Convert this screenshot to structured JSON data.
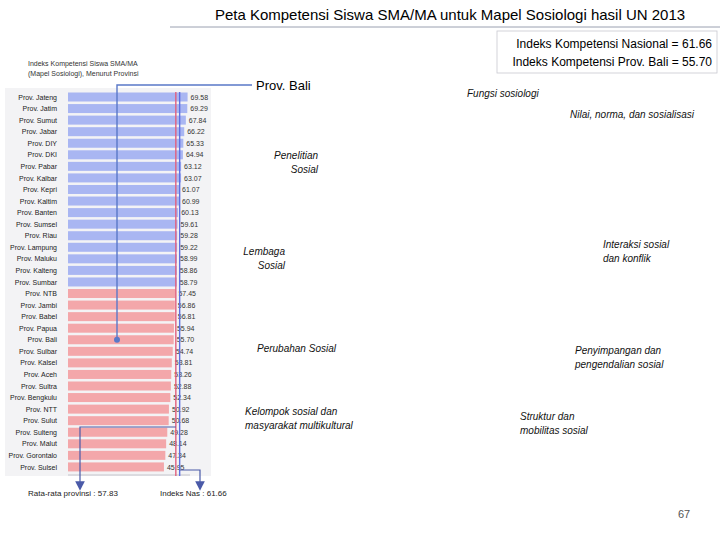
{
  "chart_data": {
    "type": "bar",
    "orientation": "horizontal",
    "title": "Peta Kompetensi Siswa SMA/MA untuk Mapel Sosiologi hasil UN 2013",
    "summary": [
      "Indeks Kompetensi Nasional = 61.66",
      "Indeks Kompetensi Prov. Bali = 55.70"
    ],
    "subtitle_lines": [
      "Indeks Kompetensi Siswa SMA/MA",
      "(Mapel Sosiologi), Menurut Provinsi"
    ],
    "categories": [
      "Prov. Jateng",
      "Prov. Jatim",
      "Prov. Sumut",
      "Prov. Jabar",
      "Prov. DIY",
      "Prov. DKI",
      "Prov. Pabar",
      "Prov. Kalbar",
      "Prov. Kepri",
      "Prov. Kaltim",
      "Prov. Banten",
      "Prov. Sumsel",
      "Prov. Riau",
      "Prov. Lampung",
      "Prov. Maluku",
      "Prov. Kalteng",
      "Prov. Sumbar",
      "Prov. NTB",
      "Prov. Jambi",
      "Prov. Babel",
      "Prov. Papua",
      "Prov. Bali",
      "Prov. Sulbar",
      "Prov. Kalsel",
      "Prov. Aceh",
      "Prov. Sultra",
      "Prov. Bengkulu",
      "Prov. NTT",
      "Prov. Sulut",
      "Prov. Sulteng",
      "Prov. Malut",
      "Prov. Gorontalo",
      "Prov. Sulsel"
    ],
    "values": [
      69.58,
      69.29,
      67.84,
      66.22,
      65.33,
      64.94,
      63.12,
      63.07,
      61.07,
      60.99,
      60.13,
      59.61,
      59.28,
      59.22,
      58.99,
      58.86,
      58.79,
      57.45,
      56.86,
      56.81,
      55.94,
      55.7,
      54.74,
      53.81,
      53.26,
      52.88,
      52.34,
      50.92,
      50.68,
      49.28,
      48.14,
      47.34,
      45.95
    ],
    "value_labels": [
      "69.58",
      "69.29",
      "67.84",
      "66.22",
      "65.33",
      "64.94",
      "63.12",
      "63.07",
      "61.07",
      "60.99",
      "60.13",
      "59.61",
      "59.28",
      "59.22",
      "58.99",
      "58.86",
      "58.79",
      "57.45",
      "56.86",
      "56.81",
      "55.94",
      "55.70",
      "54.74",
      "53.81",
      "53.26",
      "52.88",
      "52.34",
      "50.92",
      "50.68",
      "49.28",
      "48.14",
      "47.34",
      "45.95"
    ],
    "colors": [
      "#a9b6f2",
      "#a9b6f2",
      "#a9b6f2",
      "#a9b6f2",
      "#a9b6f2",
      "#a9b6f2",
      "#a9b6f2",
      "#a9b6f2",
      "#a9b6f2",
      "#a9b6f2",
      "#a9b6f2",
      "#a9b6f2",
      "#a9b6f2",
      "#a9b6f2",
      "#a9b6f2",
      "#a9b6f2",
      "#a9b6f2",
      "#f3a7aa",
      "#f3a7aa",
      "#f3a7aa",
      "#f3a7aa",
      "#f3a7aa",
      "#f3a7aa",
      "#f3a7aa",
      "#f3a7aa",
      "#f3a7aa",
      "#f3a7aa",
      "#f3a7aa",
      "#f3a7aa",
      "#f3a7aa",
      "#f3a7aa",
      "#f3a7aa",
      "#f3a7aa"
    ],
    "data_labels": true,
    "tick_labels": false,
    "xlim": [
      -50,
      72
    ],
    "reference_lines": [
      {
        "value": 57.83,
        "label": "Rata-rata provinsi : 57.83",
        "color": "#e0607e"
      },
      {
        "value": 61.66,
        "label": "Indeks Nas : 61.66",
        "color": "#5f6fe0"
      }
    ],
    "annotations": [
      {
        "text": "Prov. Bali",
        "category_index": 21
      }
    ],
    "topics": [
      {
        "lines": [
          "Fungsi sosiologi"
        ]
      },
      {
        "lines": [
          "Nilai, norma, dan sosialisasi"
        ]
      },
      {
        "lines": [
          "Penelitian",
          "Sosial"
        ]
      },
      {
        "lines": [
          "Interaksi sosial",
          "dan konflik"
        ]
      },
      {
        "lines": [
          "Lembaga",
          "Sosial"
        ]
      },
      {
        "lines": [
          "Perubahan Sosial"
        ]
      },
      {
        "lines": [
          "Penyimpangan dan",
          "pengendalian sosial"
        ]
      },
      {
        "lines": [
          "Kelompok sosial dan",
          "masyarakat multikultural"
        ]
      },
      {
        "lines": [
          "Struktur dan",
          "mobilitas sosial"
        ]
      }
    ],
    "page_number": 67
  }
}
